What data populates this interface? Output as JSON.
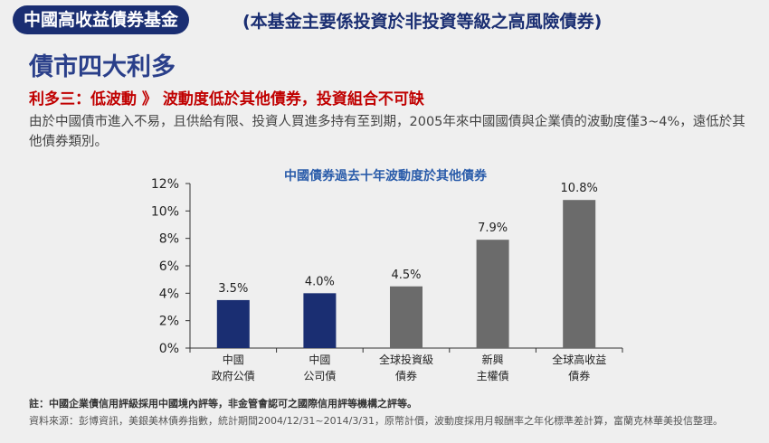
{
  "header": {
    "badge": "中國高收益債券基金",
    "note": "(本基金主要係投資於非投資等級之高風險債券)"
  },
  "section_title": "債市四大利多",
  "highlight": "利多三：低波動 》 波動度低於其他債券，投資組合不可缺",
  "body_text": "由於中國債市進入不易，且供給有限、投資人買進多持有至到期，2005年來中國國債與企業債的波動度僅3~4%，遠低於其他債券類別。",
  "footer": {
    "note": "註：中國企業債信用評級採用中國境內評等，非金管會認可之國際信用評等機構之評等。",
    "source": "資料來源：彭博資訊，美銀美林債券指數，統計期間2004/12/31~2014/3/31，原幣計價，波動度採用月報酬率之年化標準差計算，富蘭克林華美投信整理。"
  },
  "colors": {
    "navy_bar": "#1a2e72",
    "gray_bar": "#6b6b6b",
    "title_blue": "#2a5caa"
  },
  "chart_data": {
    "type": "bar",
    "title": "中國債券過去十年波動度於其他債券",
    "categories": [
      [
        "中國",
        "政府公債"
      ],
      [
        "中國",
        "公司債"
      ],
      [
        "全球投資級",
        "債券"
      ],
      [
        "新興",
        "主權債"
      ],
      [
        "全球高收益",
        "債券"
      ]
    ],
    "values": [
      3.5,
      4.0,
      4.5,
      7.9,
      10.8
    ],
    "value_labels": [
      "3.5%",
      "4.0%",
      "4.5%",
      "7.9%",
      "10.8%"
    ],
    "bar_colors": [
      "#1a2e72",
      "#1a2e72",
      "#6b6b6b",
      "#6b6b6b",
      "#6b6b6b"
    ],
    "y_ticks": [
      "0%",
      "2%",
      "4%",
      "6%",
      "8%",
      "10%",
      "12%"
    ],
    "ylim": [
      0,
      12
    ],
    "grid": false,
    "legend": "none"
  }
}
